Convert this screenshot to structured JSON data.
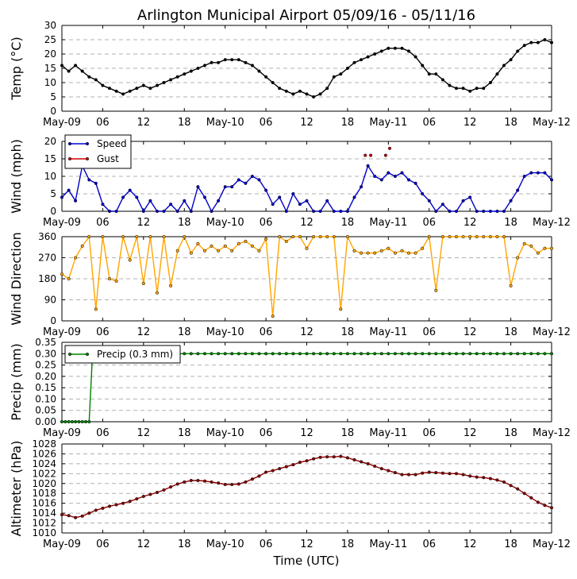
{
  "chart_data": {
    "type": "line",
    "title": "Arlington Municipal Airport 05/09/16 - 05/11/16",
    "xlabel": "Time (UTC)",
    "x_range_hours": [
      0,
      72
    ],
    "x_ticks": [
      {
        "h": 0,
        "label": "May-09"
      },
      {
        "h": 6,
        "label": "06"
      },
      {
        "h": 12,
        "label": "12"
      },
      {
        "h": 18,
        "label": "18"
      },
      {
        "h": 24,
        "label": "May-10"
      },
      {
        "h": 30,
        "label": "06"
      },
      {
        "h": 36,
        "label": "12"
      },
      {
        "h": 42,
        "label": "18"
      },
      {
        "h": 48,
        "label": "May-11"
      },
      {
        "h": 54,
        "label": "06"
      },
      {
        "h": 60,
        "label": "12"
      },
      {
        "h": 66,
        "label": "18"
      },
      {
        "h": 72,
        "label": "May-12"
      }
    ],
    "colors": {
      "temp": "#000000",
      "speed": "#0000cc",
      "gust": "#cc0000",
      "direction": "#ffa500",
      "precip": "#008000",
      "altimeter": "#8b0000",
      "grid": "#b0b0b0"
    },
    "panels": [
      {
        "id": "temp",
        "ylabel": "Temp (°C)",
        "ylim": [
          0,
          30
        ],
        "yticks": [
          "0",
          "5",
          "10",
          "15",
          "20",
          "25",
          "30"
        ],
        "legend": [],
        "series": [
          {
            "name": "Temp",
            "color": "#000000",
            "connected": true,
            "x": [
              0,
              1,
              2,
              3,
              4,
              5,
              6,
              7,
              8,
              9,
              10,
              11,
              12,
              13,
              14,
              15,
              16,
              17,
              18,
              19,
              20,
              21,
              22,
              23,
              24,
              25,
              26,
              27,
              28,
              29,
              30,
              31,
              32,
              33,
              34,
              35,
              36,
              37,
              38,
              39,
              40,
              41,
              42,
              43,
              44,
              45,
              46,
              47,
              48,
              49,
              50,
              51,
              52,
              53,
              54,
              55,
              56,
              57,
              58,
              59,
              60,
              61,
              62,
              63,
              64,
              65,
              66,
              67,
              68,
              69,
              70,
              71,
              72
            ],
            "y": [
              16,
              14,
              16,
              14,
              12,
              11,
              9,
              8,
              7,
              6,
              7,
              8,
              9,
              8,
              9,
              10,
              11,
              12,
              13,
              14,
              15,
              16,
              17,
              17,
              18,
              18,
              18,
              17,
              16,
              14,
              12,
              10,
              8,
              7,
              6,
              7,
              6,
              5,
              6,
              8,
              12,
              13,
              15,
              17,
              18,
              19,
              20,
              21,
              22,
              22,
              22,
              21,
              19,
              16,
              13,
              13,
              11,
              9,
              8,
              8,
              7,
              8,
              8,
              10,
              13,
              16,
              18,
              21,
              23,
              24,
              24,
              25,
              24
            ]
          }
        ]
      },
      {
        "id": "wind",
        "ylabel": "Wind (mph)",
        "ylim": [
          0,
          20
        ],
        "yticks": [
          "0",
          "5",
          "10",
          "15",
          "20"
        ],
        "legend": [
          {
            "label": "Speed",
            "color": "#0000cc"
          },
          {
            "label": "Gust",
            "color": "#cc0000"
          }
        ],
        "series": [
          {
            "name": "Speed",
            "color": "#0000cc",
            "connected": true,
            "x": [
              0,
              1,
              2,
              3,
              4,
              5,
              6,
              7,
              8,
              9,
              10,
              11,
              12,
              13,
              14,
              15,
              16,
              17,
              18,
              19,
              20,
              21,
              22,
              23,
              24,
              25,
              26,
              27,
              28,
              29,
              30,
              31,
              32,
              33,
              34,
              35,
              36,
              37,
              38,
              39,
              40,
              41,
              42,
              43,
              44,
              45,
              46,
              47,
              48,
              49,
              50,
              51,
              52,
              53,
              54,
              55,
              56,
              57,
              58,
              59,
              60,
              61,
              62,
              63,
              64,
              65,
              66,
              67,
              68,
              69,
              70,
              71,
              72
            ],
            "y": [
              4,
              6,
              3,
              13,
              9,
              8,
              2,
              0,
              0,
              4,
              6,
              4,
              0,
              3,
              0,
              0,
              2,
              0,
              3,
              0,
              7,
              4,
              0,
              3,
              7,
              7,
              9,
              8,
              10,
              9,
              6,
              2,
              4,
              0,
              5,
              2,
              3,
              0,
              0,
              3,
              0,
              0,
              0,
              4,
              7,
              13,
              10,
              9,
              11,
              10,
              11,
              9,
              8,
              5,
              3,
              0,
              2,
              0,
              0,
              3,
              4,
              0,
              0,
              0,
              0,
              0,
              3,
              6,
              10,
              11,
              11,
              11,
              9
            ]
          },
          {
            "name": "Gust",
            "color": "#cc0000",
            "connected": false,
            "x": [
              44.6,
              45.4,
              47.6,
              48.2
            ],
            "y": [
              16,
              16,
              16,
              18
            ]
          }
        ]
      },
      {
        "id": "direction",
        "ylabel": "Wind Direction",
        "ylim": [
          0,
          360
        ],
        "yticks": [
          "0",
          "90",
          "180",
          "270",
          "360"
        ],
        "legend": [],
        "series": [
          {
            "name": "Direction",
            "color": "#ffa500",
            "connected": true,
            "x": [
              0,
              1,
              2,
              3,
              4,
              5,
              6,
              7,
              8,
              9,
              10,
              11,
              12,
              13,
              14,
              15,
              16,
              17,
              18,
              19,
              20,
              21,
              22,
              23,
              24,
              25,
              26,
              27,
              28,
              29,
              30,
              31,
              32,
              33,
              34,
              35,
              36,
              37,
              38,
              39,
              40,
              41,
              42,
              43,
              44,
              45,
              46,
              47,
              48,
              49,
              50,
              51,
              52,
              53,
              54,
              55,
              56,
              57,
              58,
              59,
              60,
              61,
              62,
              63,
              64,
              65,
              66,
              67,
              68,
              69,
              70,
              71,
              72
            ],
            "y": [
              200,
              180,
              270,
              320,
              360,
              50,
              360,
              180,
              170,
              360,
              260,
              360,
              160,
              360,
              120,
              360,
              150,
              300,
              360,
              290,
              330,
              300,
              320,
              300,
              320,
              300,
              330,
              340,
              320,
              300,
              350,
              20,
              360,
              340,
              360,
              360,
              310,
              360,
              360,
              360,
              360,
              50,
              360,
              300,
              290,
              290,
              290,
              300,
              310,
              290,
              300,
              290,
              290,
              310,
              360,
              130,
              360,
              360,
              360,
              360,
              360,
              360,
              360,
              360,
              360,
              360,
              150,
              270,
              330,
              320,
              290,
              310,
              310
            ]
          }
        ]
      },
      {
        "id": "precip",
        "ylabel": "Precip (mm)",
        "ylim": [
          0,
          0.35
        ],
        "yticks": [
          "0.00",
          "0.05",
          "0.10",
          "0.15",
          "0.20",
          "0.25",
          "0.30",
          "0.35"
        ],
        "legend": [
          {
            "label": "Precip (0.3 mm)",
            "color": "#008000"
          }
        ],
        "series": [
          {
            "name": "Precip",
            "color": "#008000",
            "connected": true,
            "x": [
              0,
              0.5,
              1,
              1.5,
              2,
              2.5,
              3,
              3.5,
              4,
              4.5,
              5,
              6,
              7,
              8,
              9,
              10,
              11,
              12,
              13,
              14,
              15,
              16,
              17,
              18,
              19,
              20,
              21,
              22,
              23,
              24,
              25,
              26,
              27,
              28,
              29,
              30,
              31,
              32,
              33,
              34,
              35,
              36,
              37,
              38,
              39,
              40,
              41,
              42,
              43,
              44,
              45,
              46,
              47,
              48,
              49,
              50,
              51,
              52,
              53,
              54,
              55,
              56,
              57,
              58,
              59,
              60,
              61,
              62,
              63,
              64,
              65,
              66,
              67,
              68,
              69,
              70,
              71,
              72
            ],
            "y": [
              0,
              0,
              0,
              0,
              0,
              0,
              0,
              0,
              0,
              0.3,
              0.3,
              0.3,
              0.3,
              0.3,
              0.3,
              0.3,
              0.3,
              0.3,
              0.3,
              0.3,
              0.3,
              0.3,
              0.3,
              0.3,
              0.3,
              0.3,
              0.3,
              0.3,
              0.3,
              0.3,
              0.3,
              0.3,
              0.3,
              0.3,
              0.3,
              0.3,
              0.3,
              0.3,
              0.3,
              0.3,
              0.3,
              0.3,
              0.3,
              0.3,
              0.3,
              0.3,
              0.3,
              0.3,
              0.3,
              0.3,
              0.3,
              0.3,
              0.3,
              0.3,
              0.3,
              0.3,
              0.3,
              0.3,
              0.3,
              0.3,
              0.3,
              0.3,
              0.3,
              0.3,
              0.3,
              0.3,
              0.3,
              0.3,
              0.3,
              0.3,
              0.3,
              0.3,
              0.3,
              0.3,
              0.3,
              0.3,
              0.3,
              0.3
            ]
          }
        ]
      },
      {
        "id": "altimeter",
        "ylabel": "Altimeter (hPa)",
        "ylim": [
          1010,
          1028
        ],
        "yticks": [
          "1010",
          "1012",
          "1014",
          "1016",
          "1018",
          "1020",
          "1022",
          "1024",
          "1026",
          "1028"
        ],
        "legend": [],
        "series": [
          {
            "name": "Altimeter",
            "color": "#8b0000",
            "connected": true,
            "x": [
              0,
              1,
              2,
              3,
              4,
              5,
              6,
              7,
              8,
              9,
              10,
              11,
              12,
              13,
              14,
              15,
              16,
              17,
              18,
              19,
              20,
              21,
              22,
              23,
              24,
              25,
              26,
              27,
              28,
              29,
              30,
              31,
              32,
              33,
              34,
              35,
              36,
              37,
              38,
              39,
              40,
              41,
              42,
              43,
              44,
              45,
              46,
              47,
              48,
              49,
              50,
              51,
              52,
              53,
              54,
              55,
              56,
              57,
              58,
              59,
              60,
              61,
              62,
              63,
              64,
              65,
              66,
              67,
              68,
              69,
              70,
              71,
              72
            ],
            "y": [
              1013.7,
              1013.5,
              1013.1,
              1013.4,
              1014,
              1014.6,
              1015,
              1015.4,
              1015.7,
              1016,
              1016.4,
              1016.9,
              1017.4,
              1017.8,
              1018.2,
              1018.7,
              1019.3,
              1019.9,
              1020.3,
              1020.6,
              1020.6,
              1020.5,
              1020.3,
              1020.1,
              1019.8,
              1019.8,
              1019.9,
              1020.3,
              1020.9,
              1021.5,
              1022.3,
              1022.6,
              1023,
              1023.4,
              1023.8,
              1024.3,
              1024.6,
              1025,
              1025.3,
              1025.4,
              1025.4,
              1025.5,
              1025.2,
              1024.8,
              1024.4,
              1024,
              1023.5,
              1023,
              1022.6,
              1022.2,
              1021.8,
              1021.8,
              1021.8,
              1022.1,
              1022.3,
              1022.2,
              1022.1,
              1022,
              1022,
              1021.8,
              1021.5,
              1021.3,
              1021.2,
              1021,
              1020.7,
              1020.3,
              1019.6,
              1018.9,
              1018,
              1017.1,
              1016.2,
              1015.6,
              1015.1
            ]
          }
        ]
      }
    ]
  }
}
